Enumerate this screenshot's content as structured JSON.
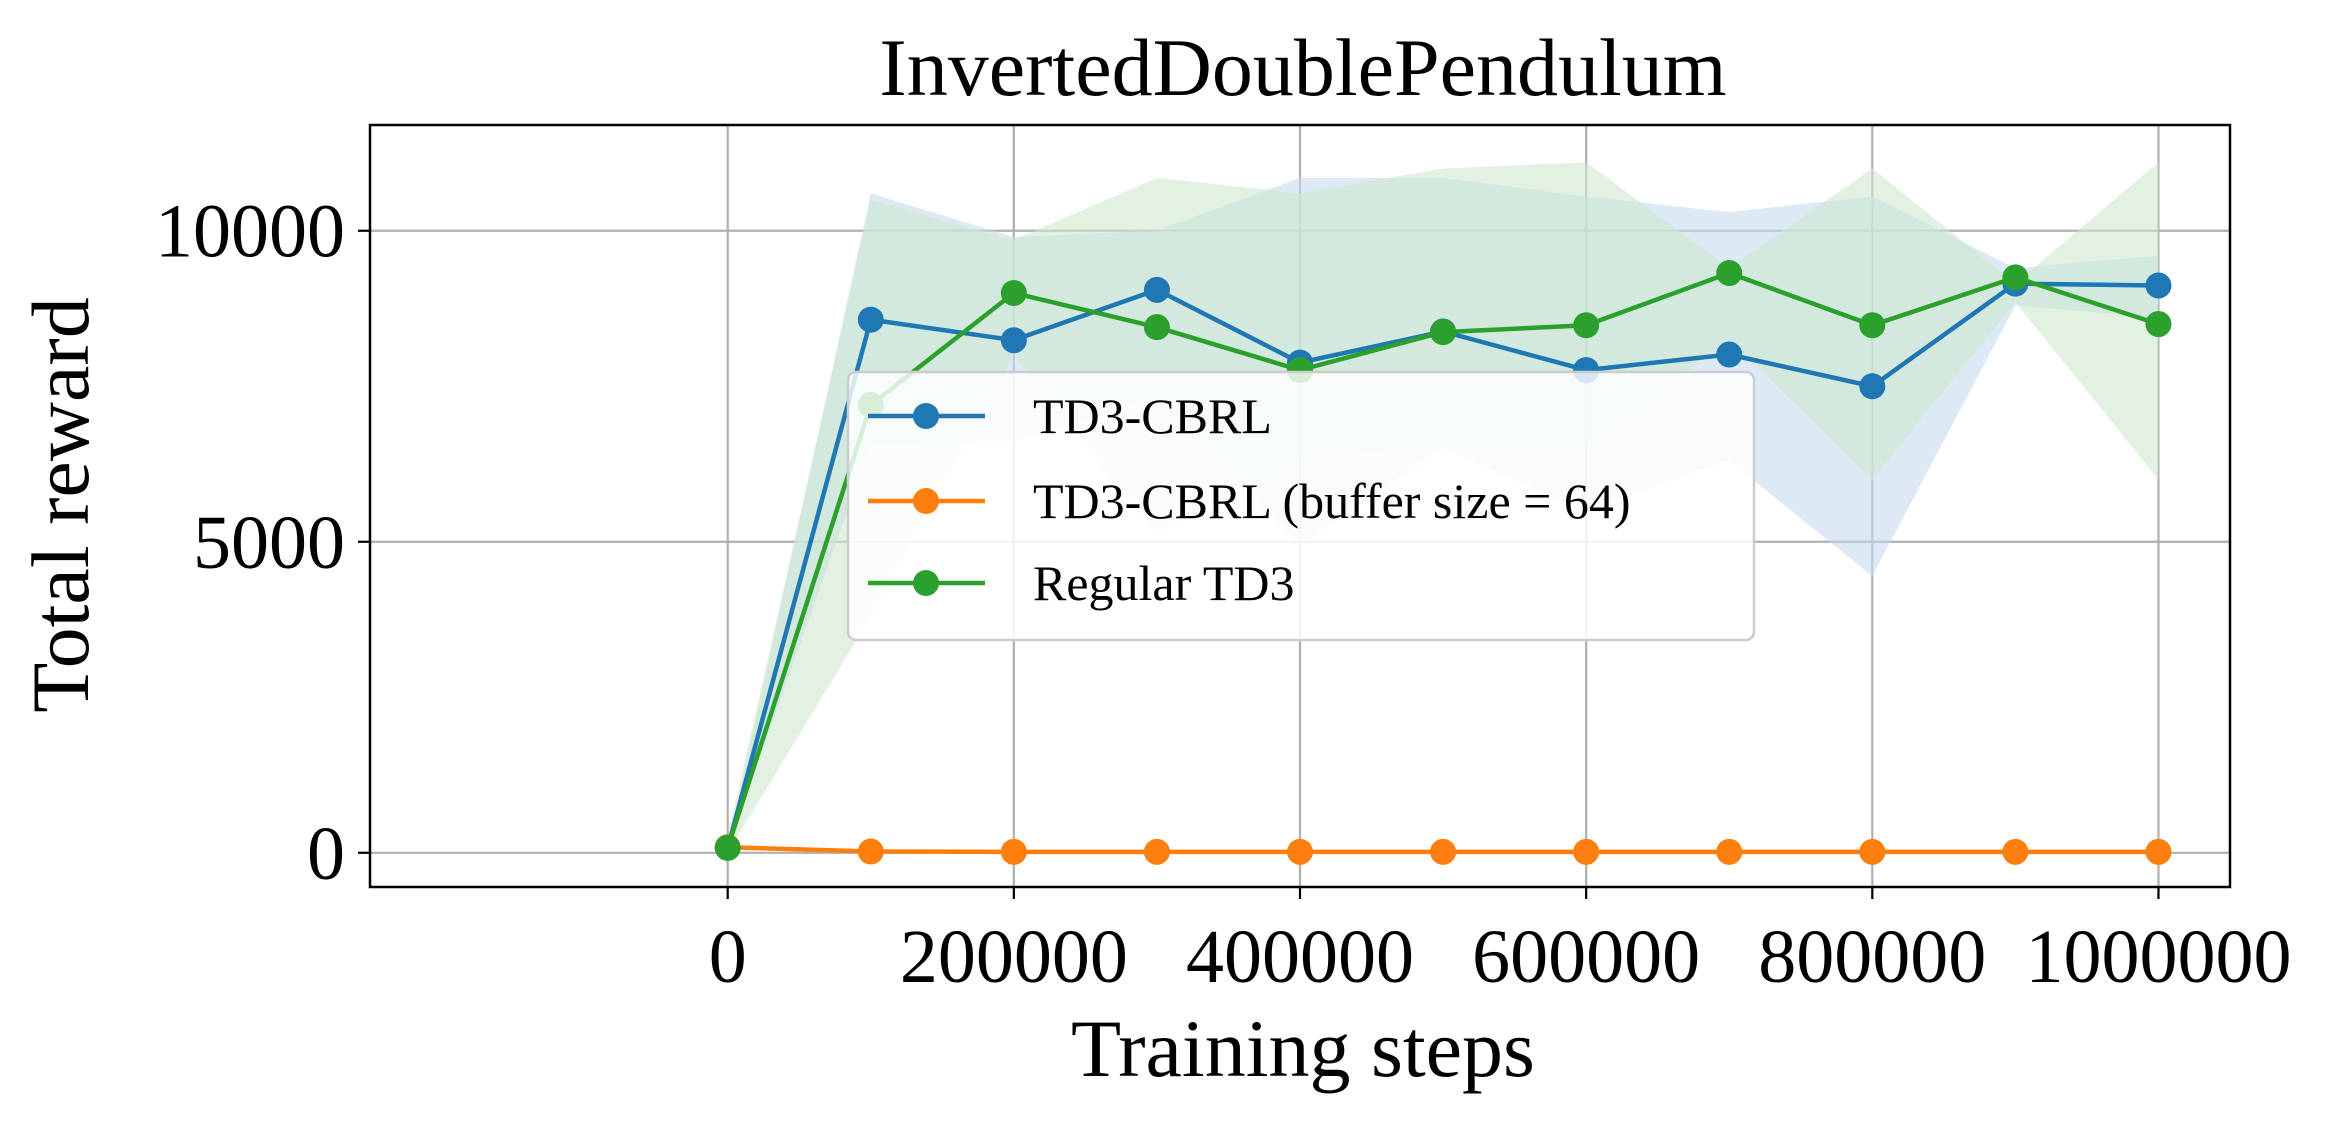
{
  "chart_data": {
    "type": "line",
    "title": "InvertedDoublePendulum",
    "xlabel": "Training steps",
    "ylabel": "Total reward",
    "xlim": [
      -250000,
      1050000
    ],
    "ylim": [
      -550,
      11700
    ],
    "xticks": [
      0,
      200000,
      400000,
      600000,
      800000,
      1000000
    ],
    "xtick_labels": [
      "0",
      "200000",
      "400000",
      "600000",
      "800000",
      "1000000"
    ],
    "yticks": [
      0,
      5000,
      10000
    ],
    "ytick_labels": [
      "0",
      "5000",
      "10000"
    ],
    "grid": true,
    "legend_position": "center",
    "x": [
      0,
      100000,
      200000,
      300000,
      400000,
      500000,
      600000,
      700000,
      800000,
      900000,
      1000000
    ],
    "series": [
      {
        "name": "TD3-CBRL",
        "color": "#1f77b4",
        "band_color": "#c6dcef",
        "values": [
          80,
          8570,
          8240,
          9050,
          7880,
          8380,
          7760,
          8010,
          7500,
          9150,
          9120
        ],
        "lower": [
          80,
          6550,
          6620,
          7300,
          4950,
          6500,
          5500,
          6300,
          4450,
          8800,
          8600
        ],
        "upper": [
          80,
          10600,
          9900,
          10000,
          10850,
          10850,
          10550,
          10300,
          10550,
          9400,
          9600
        ]
      },
      {
        "name": "TD3-CBRL (buffer size = 64)",
        "color": "#ff7f0e",
        "band_color": "#ffd7b3",
        "values": [
          90,
          20,
          15,
          15,
          15,
          15,
          15,
          15,
          15,
          15,
          15
        ],
        "lower": [
          70,
          10,
          10,
          10,
          10,
          10,
          10,
          10,
          10,
          10,
          10
        ],
        "upper": [
          110,
          30,
          25,
          25,
          25,
          25,
          25,
          25,
          25,
          25,
          25
        ]
      },
      {
        "name": "Regular TD3",
        "color": "#2ca02c",
        "band_color": "#cfe8cf",
        "values": [
          80,
          7200,
          9000,
          8450,
          7760,
          8370,
          8480,
          9320,
          8480,
          9250,
          8500
        ],
        "lower": [
          0,
          3800,
          8000,
          5100,
          6400,
          6500,
          6550,
          8250,
          6000,
          8850,
          6000
        ],
        "upper": [
          250,
          10500,
          9850,
          10850,
          10600,
          11000,
          11100,
          9400,
          11000,
          9150,
          11100
        ]
      }
    ]
  }
}
